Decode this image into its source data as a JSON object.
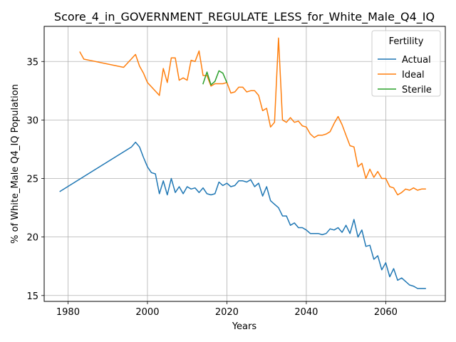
{
  "chart_data": {
    "type": "line",
    "title": "Score_4_in_GOVERNMENT_REGULATE_LESS_for_White_Male_Q4_IQ",
    "xlabel": "Years",
    "ylabel": "% of White_Male Q4_IQ Population",
    "xlim": [
      1974,
      2075
    ],
    "ylim": [
      14.5,
      38
    ],
    "xticks": [
      1980,
      2000,
      2020,
      2040,
      2060
    ],
    "yticks": [
      15,
      20,
      25,
      30,
      35
    ],
    "grid": true,
    "legend": {
      "title": "Fertility",
      "position": "top-right"
    },
    "series": [
      {
        "name": "Actual",
        "color": "#1f77b4",
        "points": [
          [
            1978,
            23.9
          ],
          [
            1996,
            27.7
          ],
          [
            1997,
            28.1
          ],
          [
            1998,
            27.7
          ],
          [
            1999,
            26.8
          ],
          [
            2000,
            26.0
          ],
          [
            2001,
            25.5
          ],
          [
            2002,
            25.4
          ],
          [
            2003,
            23.7
          ],
          [
            2004,
            24.8
          ],
          [
            2005,
            23.6
          ],
          [
            2006,
            25.0
          ],
          [
            2007,
            23.8
          ],
          [
            2008,
            24.3
          ],
          [
            2009,
            23.7
          ],
          [
            2010,
            24.3
          ],
          [
            2011,
            24.1
          ],
          [
            2012,
            24.2
          ],
          [
            2013,
            23.8
          ],
          [
            2014,
            24.2
          ],
          [
            2015,
            23.7
          ],
          [
            2016,
            23.6
          ],
          [
            2017,
            23.7
          ],
          [
            2018,
            24.7
          ],
          [
            2019,
            24.4
          ],
          [
            2020,
            24.6
          ],
          [
            2021,
            24.3
          ],
          [
            2022,
            24.4
          ],
          [
            2023,
            24.8
          ],
          [
            2024,
            24.8
          ],
          [
            2025,
            24.7
          ],
          [
            2026,
            24.9
          ],
          [
            2027,
            24.3
          ],
          [
            2028,
            24.6
          ],
          [
            2029,
            23.5
          ],
          [
            2030,
            24.3
          ],
          [
            2031,
            23.1
          ],
          [
            2032,
            22.8
          ],
          [
            2033,
            22.5
          ],
          [
            2034,
            21.8
          ],
          [
            2035,
            21.8
          ],
          [
            2036,
            21.0
          ],
          [
            2037,
            21.2
          ],
          [
            2038,
            20.8
          ],
          [
            2039,
            20.8
          ],
          [
            2040,
            20.6
          ],
          [
            2041,
            20.3
          ],
          [
            2042,
            20.3
          ],
          [
            2043,
            20.3
          ],
          [
            2044,
            20.2
          ],
          [
            2045,
            20.3
          ],
          [
            2046,
            20.7
          ],
          [
            2047,
            20.6
          ],
          [
            2048,
            20.8
          ],
          [
            2049,
            20.4
          ],
          [
            2050,
            21.0
          ],
          [
            2051,
            20.3
          ],
          [
            2052,
            21.5
          ],
          [
            2053,
            20.0
          ],
          [
            2054,
            20.6
          ],
          [
            2055,
            19.2
          ],
          [
            2056,
            19.3
          ],
          [
            2057,
            18.1
          ],
          [
            2058,
            18.4
          ],
          [
            2059,
            17.2
          ],
          [
            2060,
            17.8
          ],
          [
            2061,
            16.6
          ],
          [
            2062,
            17.3
          ],
          [
            2063,
            16.3
          ],
          [
            2064,
            16.5
          ],
          [
            2065,
            16.2
          ],
          [
            2066,
            15.9
          ],
          [
            2067,
            15.8
          ],
          [
            2068,
            15.6
          ],
          [
            2069,
            15.6
          ],
          [
            2070,
            15.6
          ]
        ]
      },
      {
        "name": "Ideal",
        "color": "#ff7f0e",
        "points": [
          [
            1983,
            35.8
          ],
          [
            1984,
            35.2
          ],
          [
            1994,
            34.5
          ],
          [
            1997,
            35.6
          ],
          [
            1998,
            34.6
          ],
          [
            1999,
            34.0
          ],
          [
            2000,
            33.2
          ],
          [
            2003,
            32.1
          ],
          [
            2004,
            34.4
          ],
          [
            2005,
            33.2
          ],
          [
            2006,
            35.3
          ],
          [
            2007,
            35.3
          ],
          [
            2008,
            33.4
          ],
          [
            2009,
            33.6
          ],
          [
            2010,
            33.4
          ],
          [
            2011,
            35.1
          ],
          [
            2012,
            35.0
          ],
          [
            2013,
            35.9
          ],
          [
            2014,
            33.8
          ],
          [
            2015,
            33.8
          ],
          [
            2016,
            32.9
          ],
          [
            2017,
            33.1
          ],
          [
            2018,
            33.1
          ],
          [
            2019,
            33.1
          ],
          [
            2020,
            33.2
          ],
          [
            2021,
            32.3
          ],
          [
            2022,
            32.4
          ],
          [
            2023,
            32.8
          ],
          [
            2024,
            32.8
          ],
          [
            2025,
            32.4
          ],
          [
            2026,
            32.5
          ],
          [
            2027,
            32.5
          ],
          [
            2028,
            32.1
          ],
          [
            2029,
            30.8
          ],
          [
            2030,
            31.0
          ],
          [
            2031,
            29.4
          ],
          [
            2032,
            29.8
          ],
          [
            2033,
            37.0
          ],
          [
            2034,
            30.0
          ],
          [
            2035,
            29.8
          ],
          [
            2036,
            30.2
          ],
          [
            2037,
            29.8
          ],
          [
            2038,
            29.9
          ],
          [
            2039,
            29.5
          ],
          [
            2040,
            29.4
          ],
          [
            2041,
            28.8
          ],
          [
            2042,
            28.5
          ],
          [
            2043,
            28.7
          ],
          [
            2044,
            28.7
          ],
          [
            2045,
            28.8
          ],
          [
            2046,
            29.0
          ],
          [
            2047,
            29.7
          ],
          [
            2048,
            30.3
          ],
          [
            2049,
            29.6
          ],
          [
            2050,
            28.7
          ],
          [
            2051,
            27.8
          ],
          [
            2052,
            27.7
          ],
          [
            2053,
            26.0
          ],
          [
            2054,
            26.3
          ],
          [
            2055,
            25.0
          ],
          [
            2056,
            25.8
          ],
          [
            2057,
            25.1
          ],
          [
            2058,
            25.6
          ],
          [
            2059,
            25.0
          ],
          [
            2060,
            25.0
          ],
          [
            2061,
            24.3
          ],
          [
            2062,
            24.2
          ],
          [
            2063,
            23.6
          ],
          [
            2064,
            23.8
          ],
          [
            2065,
            24.1
          ],
          [
            2066,
            24.0
          ],
          [
            2067,
            24.2
          ],
          [
            2068,
            24.0
          ],
          [
            2069,
            24.1
          ],
          [
            2070,
            24.1
          ]
        ]
      },
      {
        "name": "Sterile",
        "color": "#2ca02c",
        "points": [
          [
            2014,
            33.1
          ],
          [
            2015,
            34.1
          ],
          [
            2016,
            33.0
          ],
          [
            2017,
            33.3
          ],
          [
            2018,
            34.2
          ],
          [
            2019,
            34.0
          ],
          [
            2020,
            33.2
          ]
        ]
      }
    ]
  }
}
